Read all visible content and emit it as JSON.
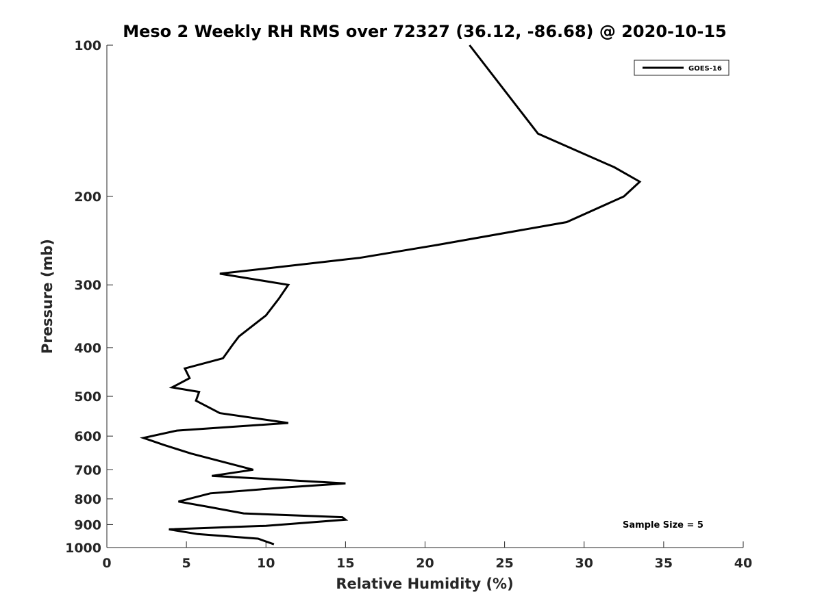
{
  "chart_data": {
    "type": "line",
    "title": "Meso 2 Weekly RH RMS over 72327 (36.12, -86.68) @ 2020-10-15",
    "xlabel": "Relative Humidity (%)",
    "ylabel": "Pressure (mb)",
    "xlim": [
      0,
      40
    ],
    "ylim": [
      100,
      1000
    ],
    "y_scale": "log",
    "y_reversed": true,
    "grid": false,
    "legend_position": "top-right",
    "x_ticks": [
      "0",
      "5",
      "10",
      "15",
      "20",
      "25",
      "30",
      "35",
      "40"
    ],
    "y_ticks": [
      "100",
      "200",
      "300",
      "400",
      "500",
      "600",
      "700",
      "800",
      "900",
      "1000"
    ],
    "series": [
      {
        "name": "GOES-16",
        "color": "#000000",
        "points": [
          [
            22.8,
            100
          ],
          [
            27.1,
            150
          ],
          [
            31.9,
            175
          ],
          [
            33.5,
            187
          ],
          [
            32.5,
            200
          ],
          [
            28.9,
            225
          ],
          [
            20.7,
            250
          ],
          [
            15.9,
            265
          ],
          [
            7.1,
            285
          ],
          [
            11.4,
            300
          ],
          [
            10.8,
            320
          ],
          [
            10.0,
            345
          ],
          [
            8.3,
            380
          ],
          [
            7.9,
            395
          ],
          [
            7.3,
            420
          ],
          [
            4.9,
            440
          ],
          [
            5.2,
            460
          ],
          [
            4.1,
            480
          ],
          [
            5.8,
            490
          ],
          [
            5.6,
            510
          ],
          [
            7.1,
            540
          ],
          [
            11.4,
            565
          ],
          [
            4.4,
            585
          ],
          [
            2.3,
            605
          ],
          [
            3.6,
            625
          ],
          [
            5.3,
            650
          ],
          [
            9.2,
            700
          ],
          [
            6.6,
            720
          ],
          [
            15.0,
            745
          ],
          [
            11.0,
            760
          ],
          [
            6.5,
            780
          ],
          [
            4.5,
            810
          ],
          [
            6.4,
            830
          ],
          [
            8.6,
            855
          ],
          [
            14.8,
            870
          ],
          [
            15.0,
            880
          ],
          [
            10.0,
            905
          ],
          [
            3.9,
            920
          ],
          [
            5.7,
            940
          ],
          [
            9.5,
            960
          ],
          [
            10.5,
            985
          ]
        ]
      }
    ],
    "annotations": [
      "Sample Size = 5"
    ]
  }
}
